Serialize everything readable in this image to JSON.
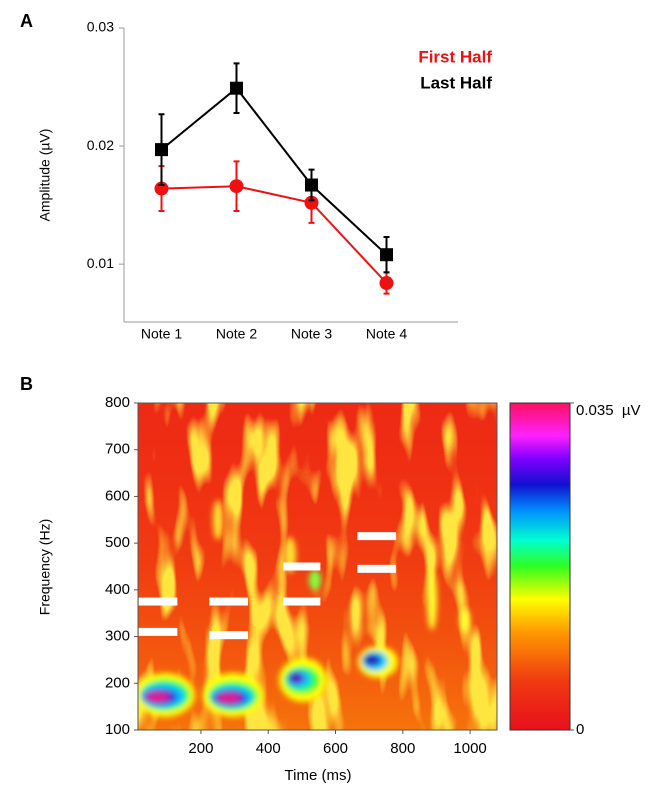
{
  "chart_data": [
    {
      "panel": "A",
      "type": "line",
      "ylabel": "Amplitude (µV)",
      "categories": [
        "Note 1",
        "Note 2",
        "Note 3",
        "Note 4"
      ],
      "series": [
        {
          "name": "First Half",
          "color": "#ee1111",
          "marker": "circle",
          "values": [
            0.0164,
            0.0166,
            0.0152,
            0.0084
          ],
          "errors": [
            0.0019,
            0.0021,
            0.0017,
            0.0009
          ]
        },
        {
          "name": "Last Half",
          "color": "#000000",
          "marker": "square",
          "values": [
            0.0197,
            0.0249,
            0.0167,
            0.0108
          ],
          "errors": [
            0.003,
            0.0021,
            0.0013,
            0.0015
          ]
        }
      ],
      "ylim": [
        0.0051,
        0.03
      ],
      "yticks": [
        0.01,
        0.02,
        0.03
      ],
      "legend": "upper right"
    },
    {
      "panel": "B",
      "type": "heatmap",
      "xlabel": "Time (ms)",
      "ylabel": "Frequency (Hz)",
      "xlim": [
        13,
        1080
      ],
      "ylim": [
        100,
        800
      ],
      "xticks": [
        200,
        400,
        600,
        800,
        1000
      ],
      "yticks": [
        100,
        200,
        300,
        400,
        500,
        600,
        700,
        800
      ],
      "colorbar": {
        "lim": [
          0,
          0.035
        ],
        "ticks": [
          {
            "value": 0.035,
            "label": "0.035  µV"
          },
          0
        ]
      },
      "markers": [
        {
          "x": [
            15,
            130
          ],
          "y": 375
        },
        {
          "x": [
            15,
            130
          ],
          "y": 310
        },
        {
          "x": [
            225,
            340
          ],
          "y": 375
        },
        {
          "x": [
            225,
            340
          ],
          "y": 303
        },
        {
          "x": [
            445,
            555
          ],
          "y": 450
        },
        {
          "x": [
            445,
            555
          ],
          "y": 375
        },
        {
          "x": [
            665,
            780
          ],
          "y": 515
        },
        {
          "x": [
            665,
            780
          ],
          "y": 445
        }
      ]
    }
  ]
}
